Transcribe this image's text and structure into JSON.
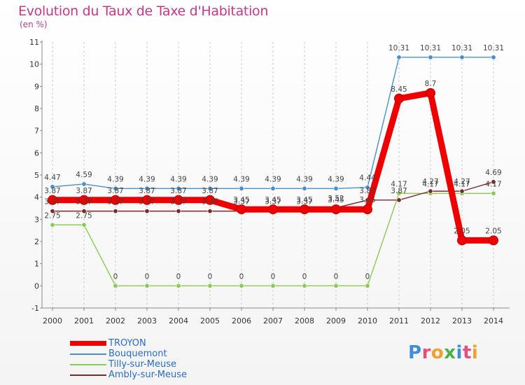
{
  "header": {
    "title": "Evolution du Taux de Taxe d'Habitation",
    "subtitle": "(en %)"
  },
  "logo": {
    "text": "Proxiti",
    "letters": [
      {
        "ch": "P",
        "color": "#3e8fd6"
      },
      {
        "ch": "r",
        "color": "#e0527a"
      },
      {
        "ch": "o",
        "color": "#f0a030"
      },
      {
        "ch": "x",
        "color": "#4fb04a"
      },
      {
        "ch": "i",
        "color": "#3e8fd6"
      },
      {
        "ch": "t",
        "color": "#e0527a"
      },
      {
        "ch": "i",
        "color": "#f0a030"
      }
    ]
  },
  "chart_data": {
    "type": "line",
    "title": "Evolution du Taux de Taxe d'Habitation",
    "subtitle": "(en %)",
    "xlabel": "",
    "ylabel": "",
    "x": [
      "2000",
      "2001",
      "2002",
      "2003",
      "2004",
      "2005",
      "2006",
      "2007",
      "2008",
      "2009",
      "2010",
      "2011",
      "2012",
      "2013",
      "2014"
    ],
    "ylim": [
      -1,
      11
    ],
    "yticks": [
      -1,
      0,
      1,
      2,
      3,
      4,
      5,
      6,
      7,
      8,
      9,
      10,
      11
    ],
    "grid": "vertical dashed",
    "legend_position": "bottom-left",
    "series": [
      {
        "name": "TROYON",
        "color": "#ee0000",
        "values": [
          3.87,
          3.87,
          3.87,
          3.87,
          3.87,
          3.87,
          3.45,
          3.45,
          3.45,
          3.45,
          3.45,
          8.45,
          8.7,
          2.05,
          2.05
        ],
        "labels": [
          "3.87",
          "3.87",
          "3.87",
          "3.87",
          "3.87",
          "3.87",
          "3.45",
          "3.45",
          "3.45",
          "3.45",
          "3.45",
          "8.45",
          "8.7",
          "2.05",
          "2.05"
        ]
      },
      {
        "name": "Bouquemont",
        "color": "#4a90c8",
        "values": [
          4.47,
          4.59,
          4.39,
          4.39,
          4.39,
          4.39,
          4.39,
          4.39,
          4.39,
          4.39,
          4.44,
          10.31,
          10.31,
          10.31,
          10.31
        ],
        "labels": [
          "4.47",
          "4.59",
          "4.39",
          "4.39",
          "4.39",
          "4.39",
          "4.39",
          "4.39",
          "4.39",
          "4.39",
          "4.44",
          "10.31",
          "10.31",
          "10.31",
          "10.31"
        ]
      },
      {
        "name": "Tilly-sur-Meuse",
        "color": "#88cc55",
        "values": [
          2.75,
          2.75,
          0,
          0,
          0,
          0,
          0,
          0,
          0,
          0,
          0,
          4.17,
          4.17,
          4.17,
          4.17
        ],
        "labels": [
          "2.75",
          "2.75",
          "0",
          "0",
          "0",
          "0",
          "0",
          "0",
          "0",
          "0",
          "0",
          "4.17",
          "4.17",
          "4.17",
          "4.17"
        ]
      },
      {
        "name": "Ambly-sur-Meuse",
        "color": "#7a2a2a",
        "values": [
          3.37,
          3.37,
          3.37,
          3.37,
          3.37,
          3.37,
          3.37,
          3.37,
          3.37,
          3.52,
          3.87,
          3.87,
          4.27,
          4.27,
          4.69
        ],
        "labels": [
          "3.37",
          "3.37",
          "3.37",
          "3.37",
          "3.37",
          "3.37",
          "3.37",
          "3.37",
          "3.37",
          "3.52",
          "3.87",
          "3.87",
          "4.27",
          "4.27",
          "4.69"
        ]
      }
    ]
  }
}
